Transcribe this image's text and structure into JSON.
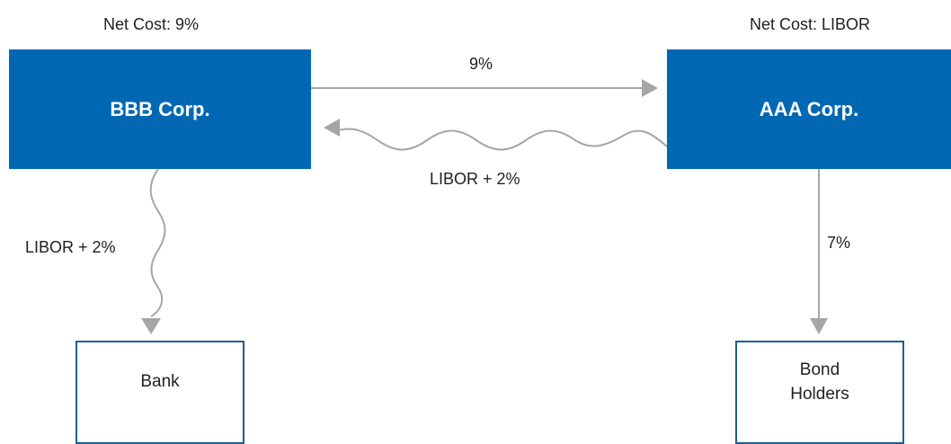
{
  "colors": {
    "corp_fill": "#0068b3",
    "party_border": "#1b5f96",
    "arrow": "#a6a6a6"
  },
  "bbb": {
    "name": "BBB Corp.",
    "net_cost": "Net Cost: 9%"
  },
  "aaa": {
    "name": "AAA Corp.",
    "net_cost": "Net Cost: LIBOR"
  },
  "bank": {
    "name": "Bank"
  },
  "bondholders": {
    "line1": "Bond",
    "line2": "Holders"
  },
  "flows": {
    "bbb_to_aaa": "9%",
    "aaa_to_bbb": "LIBOR + 2%",
    "bbb_to_bank": "LIBOR + 2%",
    "aaa_to_bondholders": "7%"
  }
}
